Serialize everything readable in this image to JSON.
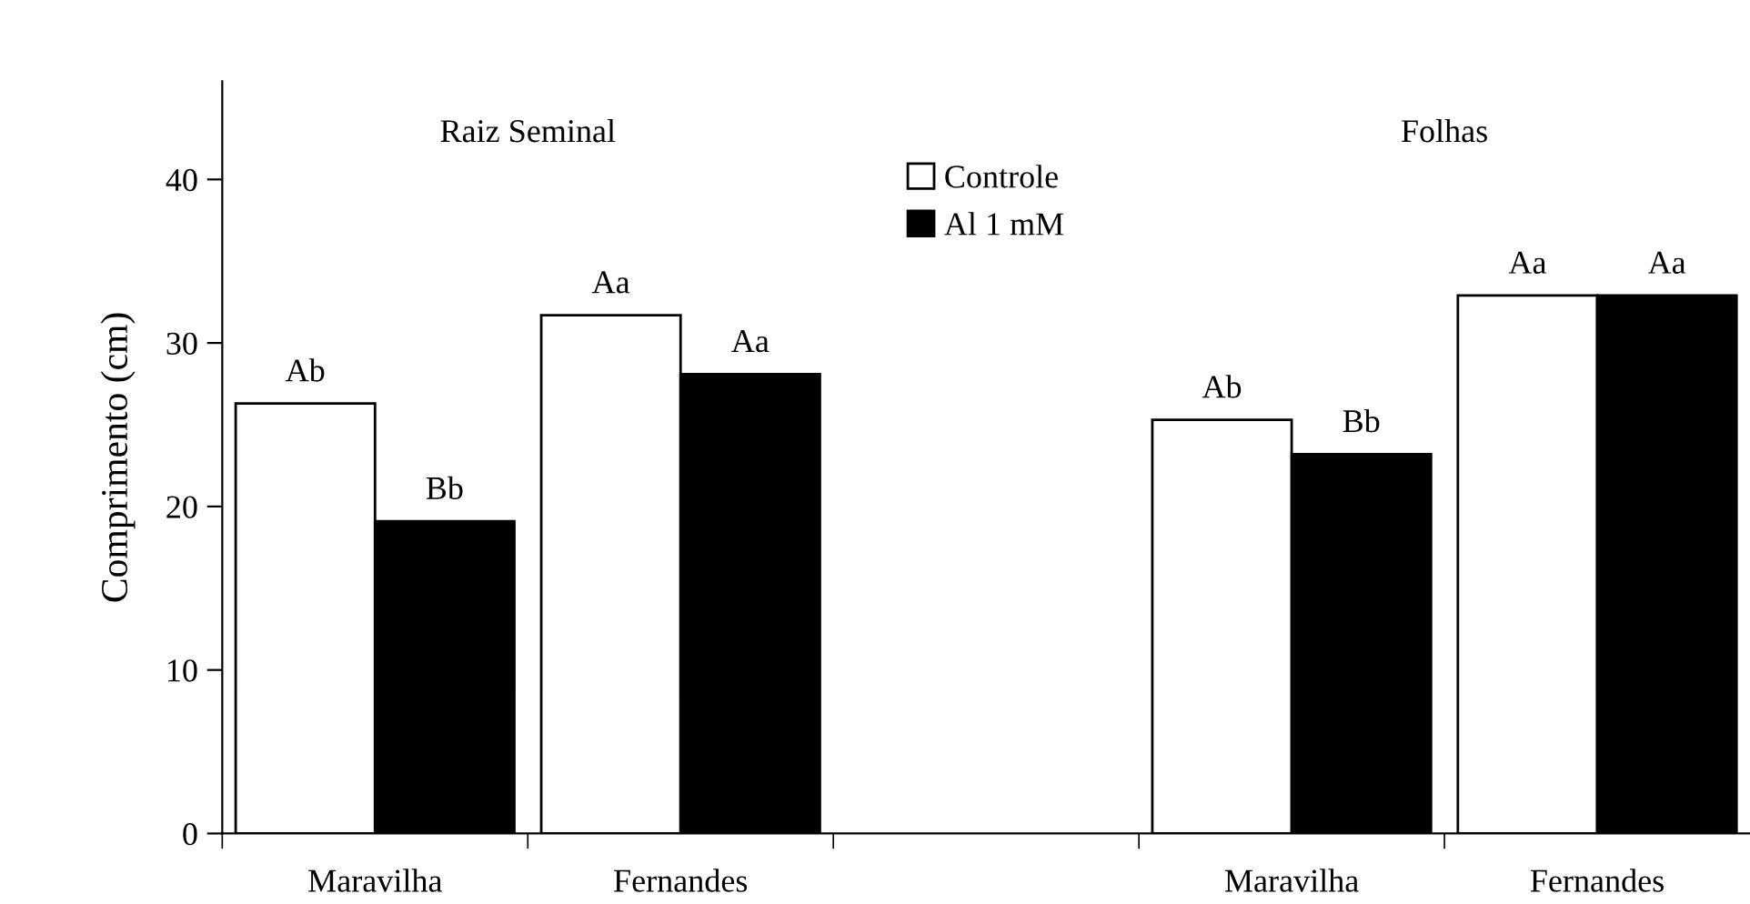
{
  "chart_data": {
    "type": "bar",
    "ylabel": "Comprimento (cm)",
    "categories": [
      "Maravilha",
      "Fernandes",
      null,
      "Maravilha",
      "Fernandes"
    ],
    "series": [
      {
        "name": "Controle",
        "color": "#ffffff",
        "values": [
          26.3,
          31.7,
          null,
          25.3,
          32.9
        ],
        "value_labels": [
          "Ab",
          "Aa",
          null,
          "Ab",
          "Aa"
        ]
      },
      {
        "name": "Al 1 mM",
        "color": "#000000",
        "values": [
          19.1,
          28.1,
          null,
          23.2,
          32.9
        ],
        "value_labels": [
          "Bb",
          "Aa",
          null,
          "Bb",
          "Aa"
        ]
      }
    ],
    "annotations": [
      "Raiz Seminal",
      "Folhas"
    ],
    "ylim": [
      0,
      46
    ],
    "yticks": [
      0,
      10,
      20,
      30,
      40
    ],
    "grid": false,
    "legend": "top"
  }
}
